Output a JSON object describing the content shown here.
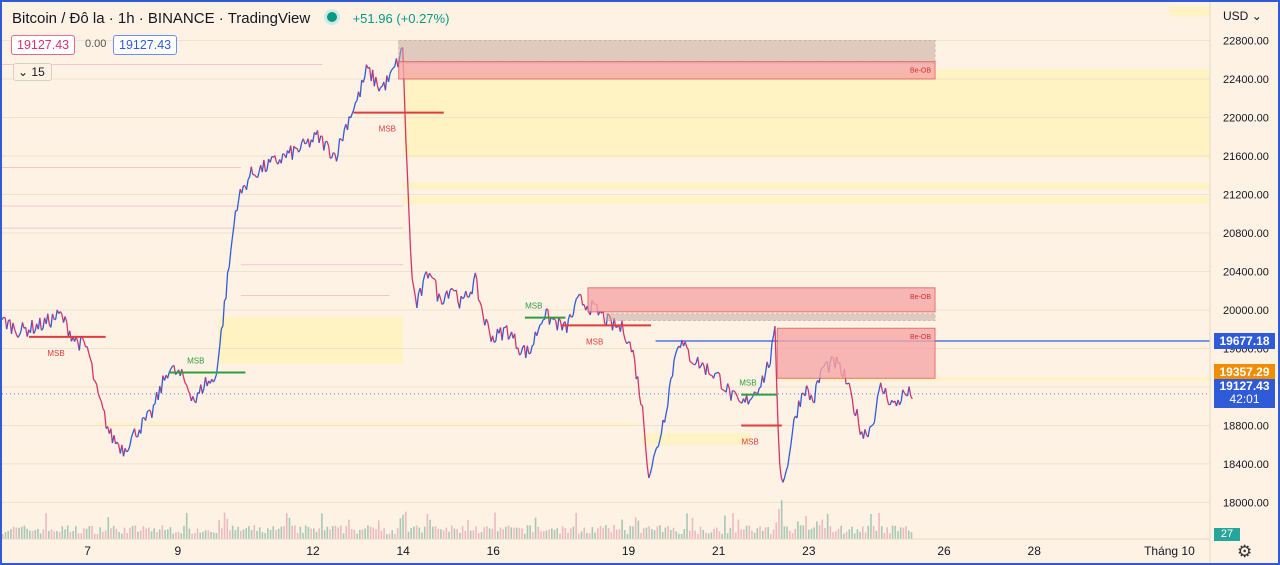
{
  "header": {
    "title": "Bitcoin / Đô la",
    "interval": "1h",
    "exchange": "BINANCE",
    "platform": "TradingView",
    "change": "+51.96 (+0.27%)",
    "bid": "19127.43",
    "spread": "0.00",
    "ask": "19127.43",
    "indicator_count": "15"
  },
  "currency_label": "USD",
  "price_tags": {
    "blue_line": "19677.18",
    "orange": "19357.29",
    "last_price": "19127.43",
    "countdown": "42:01",
    "volume": "27"
  },
  "colors": {
    "background": "#fdf2e4",
    "up": "#2f5bd9",
    "down": "#d6336c",
    "bull_structure": "#2e9e3e",
    "bear_structure": "#e03c3c",
    "order_block": "#f6a7a7",
    "fvg_zone": "#fff2b8",
    "tag_blue": "#2f5bd9",
    "tag_orange": "#f28c00"
  },
  "chart_data": {
    "type": "candlestick",
    "symbol": "BTCUSD",
    "interval": "1h",
    "y_ticks": [
      22800,
      22400,
      22000,
      21600,
      21200,
      20800,
      20400,
      20000,
      19600,
      19200,
      18800,
      18400,
      18000
    ],
    "y_tick_labels": [
      "22800.00",
      "22400.00",
      "22000.00",
      "21600.00",
      "21200.00",
      "20800.00",
      "20400.00",
      "20000.00",
      "19600.00",
      "19200.00",
      "18800.00",
      "18400.00",
      "18000.00"
    ],
    "ylim": [
      17620,
      23200
    ],
    "x_ticks": [
      {
        "label": "7",
        "day": 7
      },
      {
        "label": "9",
        "day": 9
      },
      {
        "label": "12",
        "day": 12
      },
      {
        "label": "14",
        "day": 14
      },
      {
        "label": "16",
        "day": 16
      },
      {
        "label": "19",
        "day": 19
      },
      {
        "label": "21",
        "day": 21
      },
      {
        "label": "23",
        "day": 23
      },
      {
        "label": "26",
        "day": 26
      },
      {
        "label": "28",
        "day": 28
      },
      {
        "label": "Tháng 10",
        "day": 31
      }
    ],
    "xlim": [
      5.1,
      31.9
    ],
    "price_path": [
      [
        5.1,
        19900
      ],
      [
        5.5,
        19780
      ],
      [
        6.0,
        19850
      ],
      [
        6.4,
        19950
      ],
      [
        6.7,
        19700
      ],
      [
        7.0,
        19600
      ],
      [
        7.2,
        19150
      ],
      [
        7.5,
        18700
      ],
      [
        7.8,
        18550
      ],
      [
        8.1,
        18750
      ],
      [
        8.4,
        18900
      ],
      [
        8.8,
        19400
      ],
      [
        9.1,
        19300
      ],
      [
        9.4,
        19050
      ],
      [
        9.6,
        19250
      ],
      [
        9.8,
        19250
      ],
      [
        9.9,
        19500
      ],
      [
        10.1,
        20300
      ],
      [
        10.3,
        21100
      ],
      [
        10.6,
        21400
      ],
      [
        11.0,
        21500
      ],
      [
        11.4,
        21600
      ],
      [
        11.8,
        21700
      ],
      [
        12.1,
        21800
      ],
      [
        12.5,
        21600
      ],
      [
        12.8,
        22000
      ],
      [
        13.0,
        22200
      ],
      [
        13.2,
        22500
      ],
      [
        13.5,
        22300
      ],
      [
        13.7,
        22400
      ],
      [
        13.9,
        22600
      ],
      [
        14.0,
        22700
      ],
      [
        14.05,
        21900
      ],
      [
        14.1,
        21300
      ],
      [
        14.15,
        20800
      ],
      [
        14.2,
        20300
      ],
      [
        14.3,
        20050
      ],
      [
        14.6,
        20450
      ],
      [
        14.8,
        20100
      ],
      [
        15.1,
        20250
      ],
      [
        15.3,
        20050
      ],
      [
        15.6,
        20300
      ],
      [
        15.8,
        19900
      ],
      [
        16.0,
        19700
      ],
      [
        16.3,
        19800
      ],
      [
        16.6,
        19600
      ],
      [
        16.8,
        19550
      ],
      [
        17.1,
        19950
      ],
      [
        17.3,
        19900
      ],
      [
        17.6,
        19800
      ],
      [
        17.9,
        20100
      ],
      [
        18.1,
        20050
      ],
      [
        18.4,
        19950
      ],
      [
        18.6,
        19850
      ],
      [
        18.9,
        19800
      ],
      [
        19.1,
        19550
      ],
      [
        19.3,
        19000
      ],
      [
        19.45,
        18300
      ],
      [
        19.6,
        18500
      ],
      [
        19.8,
        18900
      ],
      [
        20.1,
        19700
      ],
      [
        20.4,
        19500
      ],
      [
        20.7,
        19400
      ],
      [
        21.0,
        19300
      ],
      [
        21.3,
        19100
      ],
      [
        21.5,
        19000
      ],
      [
        21.8,
        19150
      ],
      [
        22.0,
        19300
      ],
      [
        22.15,
        19500
      ],
      [
        22.25,
        19750
      ],
      [
        22.35,
        18400
      ],
      [
        22.45,
        18200
      ],
      [
        22.7,
        18900
      ],
      [
        22.9,
        19200
      ],
      [
        23.1,
        19050
      ],
      [
        23.3,
        19400
      ],
      [
        23.6,
        19450
      ],
      [
        23.8,
        19300
      ],
      [
        24.0,
        19000
      ],
      [
        24.2,
        18700
      ],
      [
        24.4,
        18800
      ],
      [
        24.6,
        19200
      ],
      [
        24.9,
        19000
      ],
      [
        25.1,
        19120
      ],
      [
        25.3,
        19130
      ]
    ],
    "overlays": [
      {
        "type": "order_block",
        "label": "Be-OB",
        "x": [
          13.9,
          25.8
        ],
        "y": [
          22580,
          22400
        ]
      },
      {
        "type": "order_block",
        "label": "Be-OB",
        "x": [
          18.1,
          25.8
        ],
        "y": [
          20230,
          19980
        ]
      },
      {
        "type": "order_block",
        "label": "Be-OB",
        "x": [
          22.3,
          25.8
        ],
        "y": [
          19810,
          19290
        ]
      },
      {
        "type": "structure",
        "label": "MSB",
        "side": "bear",
        "x": [
          5.7,
          7.4
        ],
        "y": 19720
      },
      {
        "type": "structure",
        "label": "MSB",
        "side": "bull",
        "x": [
          8.8,
          10.5
        ],
        "y": 19350
      },
      {
        "type": "structure",
        "label": "MSB",
        "side": "bear",
        "x": [
          12.9,
          14.9
        ],
        "y": 22050
      },
      {
        "type": "structure",
        "label": "MSB",
        "side": "bull",
        "x": [
          16.7,
          17.6
        ],
        "y": 19920
      },
      {
        "type": "structure",
        "label": "MSB",
        "side": "bear",
        "x": [
          17.5,
          19.5
        ],
        "y": 19840
      },
      {
        "type": "structure",
        "label": "MSB",
        "side": "bull",
        "x": [
          21.5,
          22.3
        ],
        "y": 19120
      },
      {
        "type": "structure",
        "label": "MSB",
        "side": "bear",
        "x": [
          21.5,
          22.4
        ],
        "y": 18800
      }
    ],
    "horizontal_lines": [
      {
        "name": "blue_line",
        "price": 19677.18
      },
      {
        "name": "last_price",
        "price": 19127.43
      }
    ]
  }
}
